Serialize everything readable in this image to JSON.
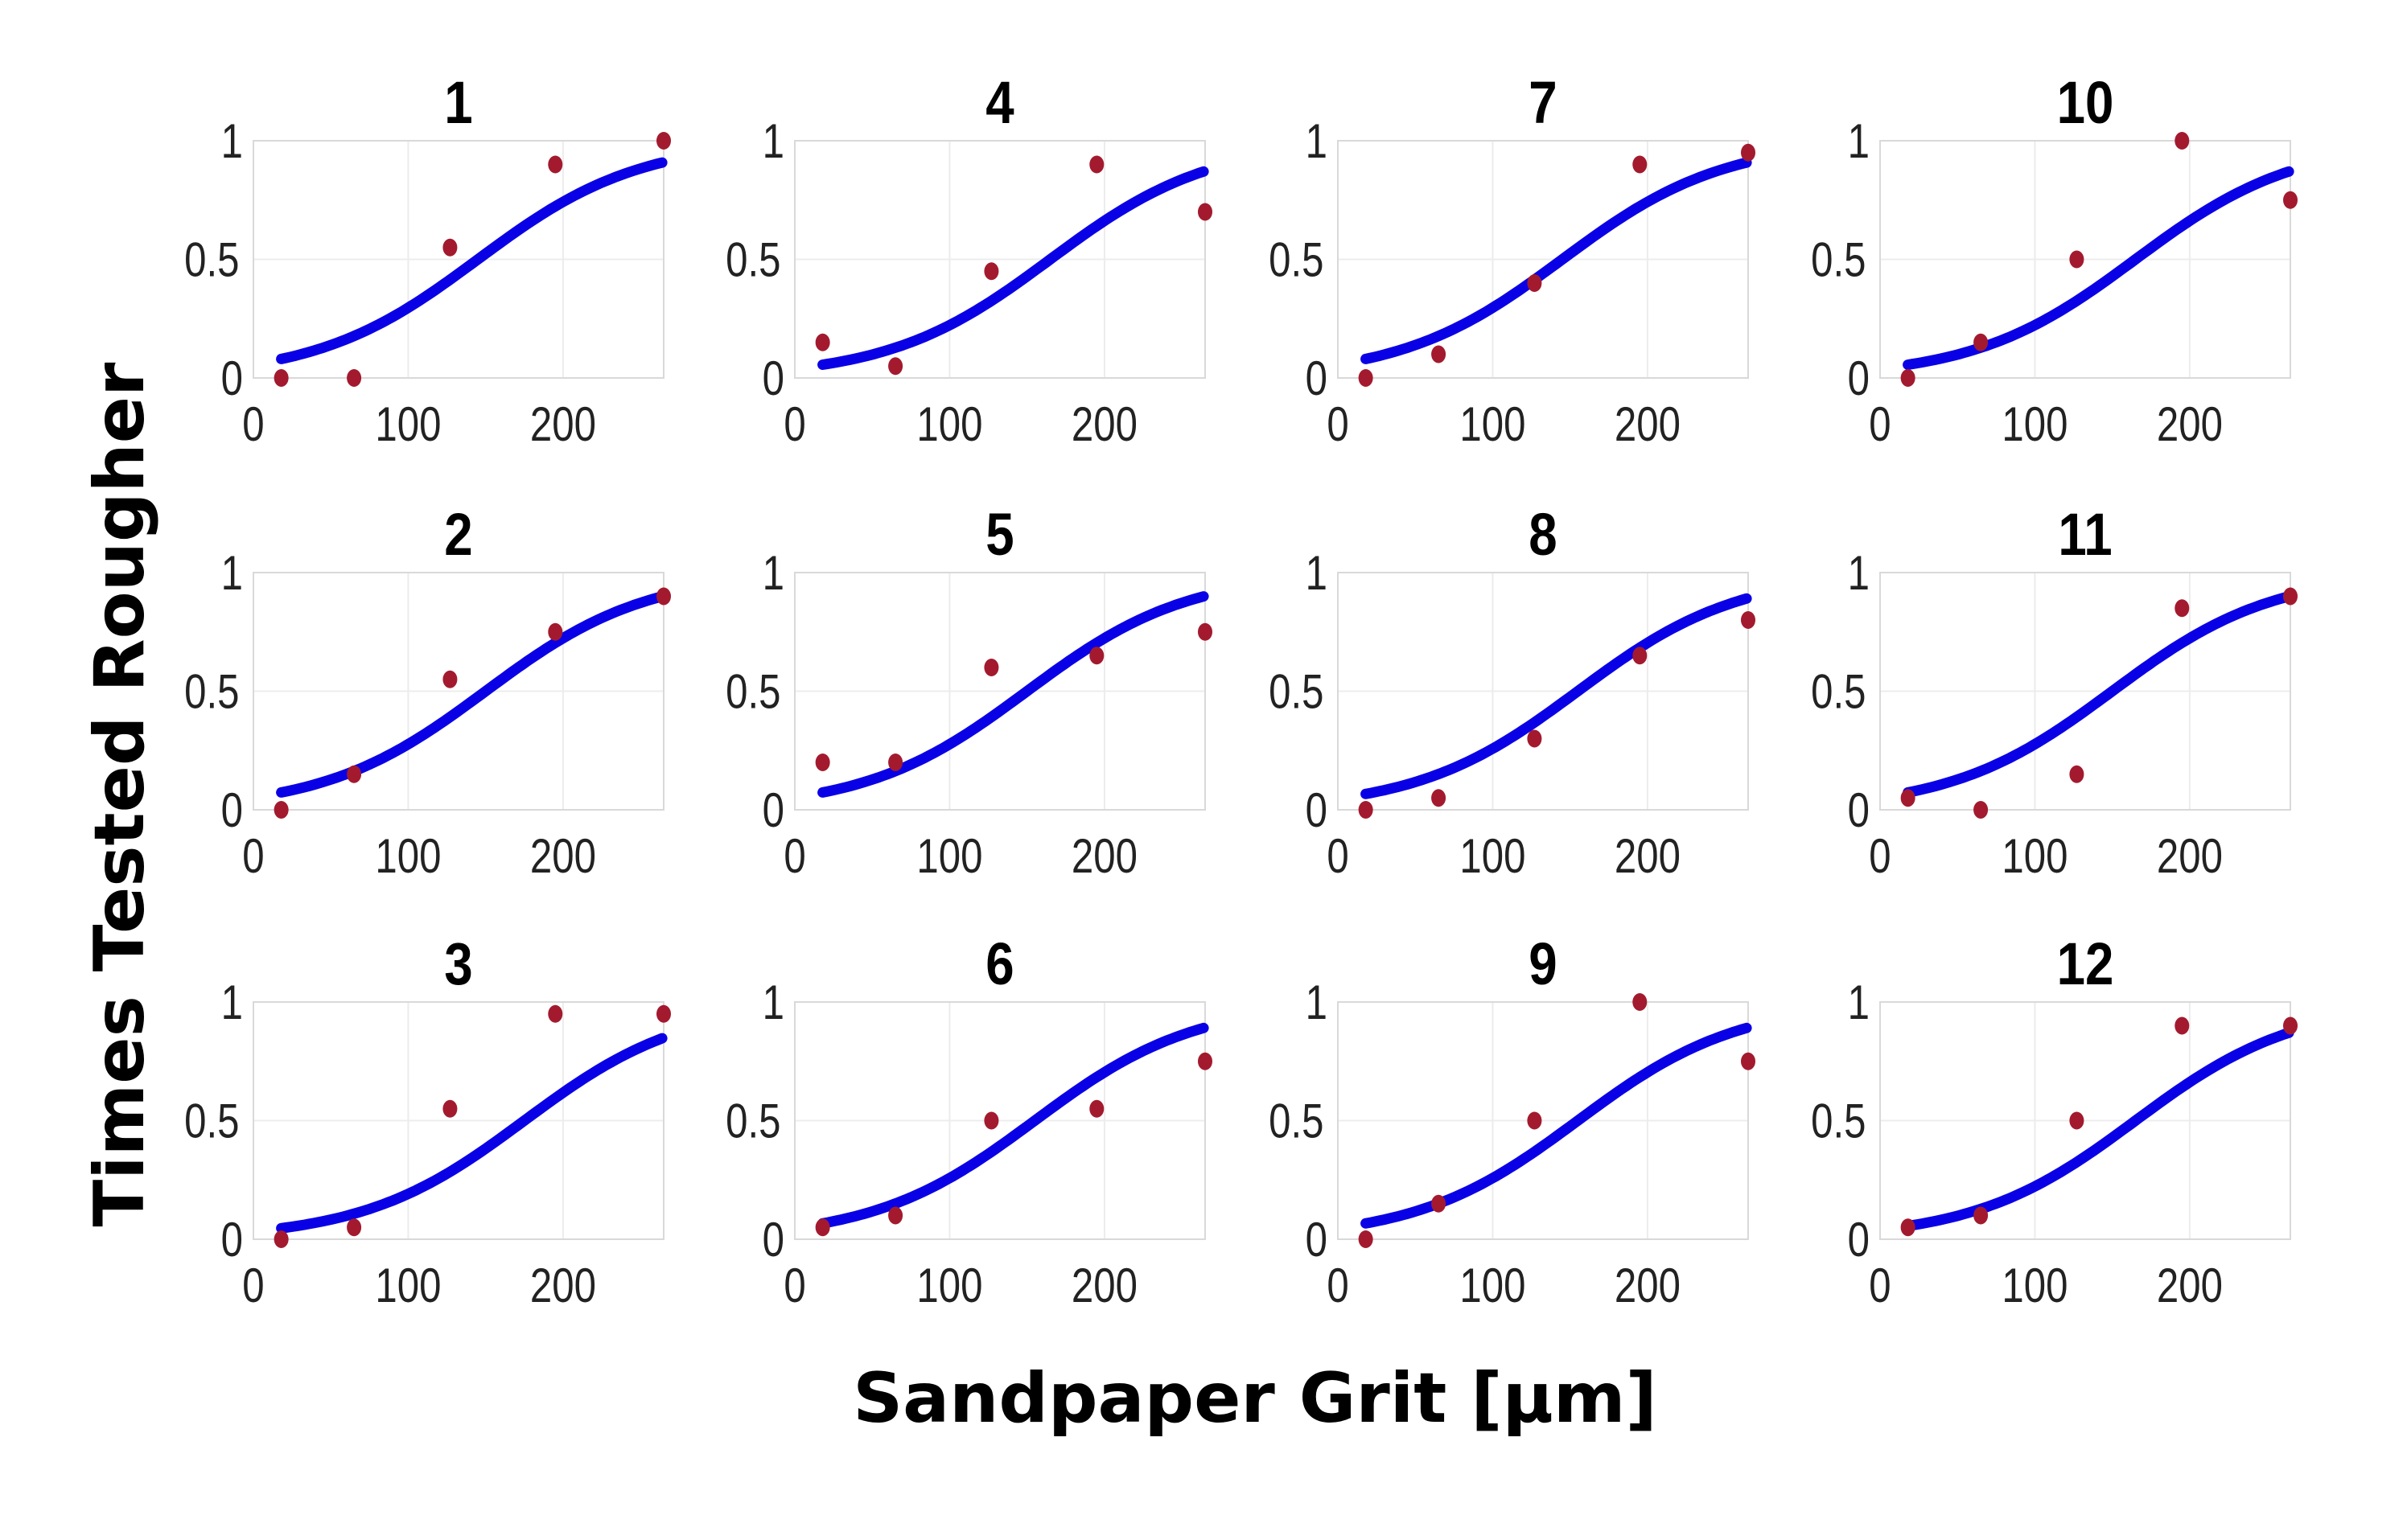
{
  "figure": {
    "ylabel": "Times Tested Rougher",
    "xlabel": "Sandpaper Grit [µm]"
  },
  "colors": {
    "fit_line": "#0a00e6",
    "points": "#a31a2e",
    "grid": "#ececec",
    "frame": "#d9d9d9"
  },
  "chart_data": {
    "type": "scatter",
    "layout": "small-multiples",
    "x_ticks": [
      "0",
      "100",
      "200"
    ],
    "y_ticks": [
      "0",
      "0.5",
      "1"
    ],
    "xlim": [
      0,
      265
    ],
    "ylim": [
      0,
      1
    ],
    "grid": true,
    "point_x": [
      18,
      65,
      127,
      195,
      265
    ],
    "panels": [
      {
        "title": "1",
        "points": [
          0.0,
          0.0,
          0.55,
          0.9,
          1.0
        ],
        "fit": {
          "x0": 145,
          "scale": 52
        }
      },
      {
        "title": "4",
        "points": [
          0.15,
          0.05,
          0.45,
          0.9,
          0.7
        ],
        "fit": {
          "x0": 165,
          "scale": 52
        }
      },
      {
        "title": "7",
        "points": [
          0.0,
          0.1,
          0.4,
          0.9,
          0.95
        ],
        "fit": {
          "x0": 145,
          "scale": 52
        }
      },
      {
        "title": "10",
        "points": [
          0.0,
          0.15,
          0.5,
          1.0,
          0.75
        ],
        "fit": {
          "x0": 165,
          "scale": 52
        }
      },
      {
        "title": "2",
        "points": [
          0.0,
          0.15,
          0.55,
          0.75,
          0.9
        ],
        "fit": {
          "x0": 150,
          "scale": 52
        }
      },
      {
        "title": "5",
        "points": [
          0.2,
          0.2,
          0.6,
          0.65,
          0.75
        ],
        "fit": {
          "x0": 150,
          "scale": 52
        }
      },
      {
        "title": "8",
        "points": [
          0.0,
          0.05,
          0.3,
          0.65,
          0.8
        ],
        "fit": {
          "x0": 155,
          "scale": 52
        }
      },
      {
        "title": "11",
        "points": [
          0.05,
          0.0,
          0.15,
          0.85,
          0.9
        ],
        "fit": {
          "x0": 150,
          "scale": 52
        }
      },
      {
        "title": "3",
        "points": [
          0.0,
          0.05,
          0.55,
          0.95,
          0.95
        ],
        "fit": {
          "x0": 175,
          "scale": 52
        }
      },
      {
        "title": "6",
        "points": [
          0.05,
          0.1,
          0.5,
          0.55,
          0.75
        ],
        "fit": {
          "x0": 155,
          "scale": 52
        }
      },
      {
        "title": "9",
        "points": [
          0.0,
          0.15,
          0.5,
          1.0,
          0.75
        ],
        "fit": {
          "x0": 155,
          "scale": 52
        }
      },
      {
        "title": "12",
        "points": [
          0.05,
          0.1,
          0.5,
          0.9,
          0.9
        ],
        "fit": {
          "x0": 165,
          "scale": 52
        }
      }
    ]
  }
}
